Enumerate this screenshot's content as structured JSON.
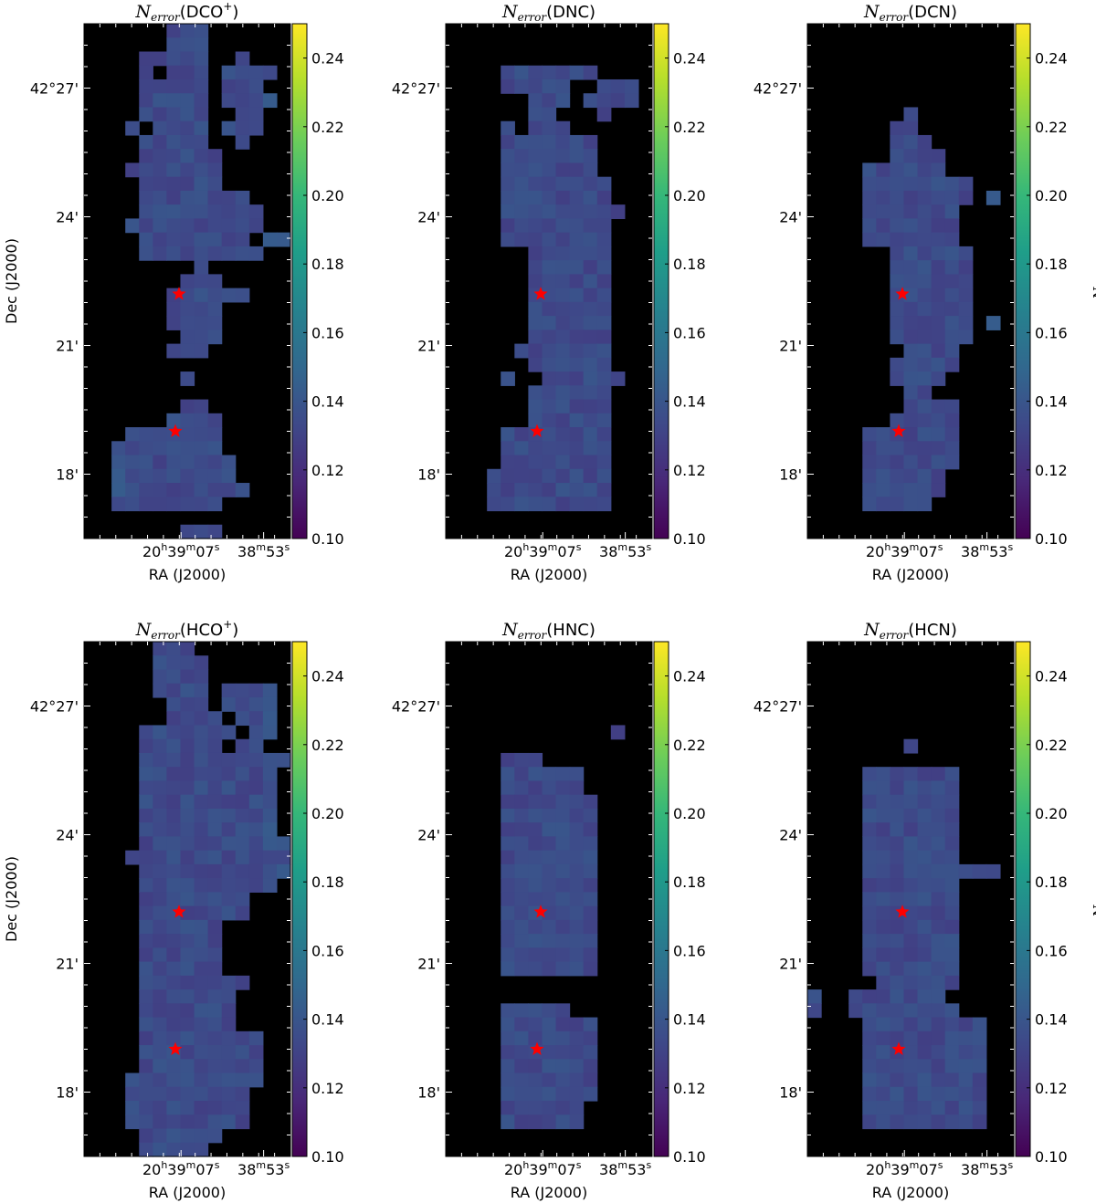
{
  "figure": {
    "colormap": "viridis",
    "background_color": "#000000",
    "marker_color": "#ff0000",
    "marker_symbol": "star",
    "sources": [
      {
        "ra_offset_arcmin": 0.0,
        "dec_arcmin": 22.7
      },
      {
        "ra_offset_arcmin": -0.1,
        "dec_arcmin": 19.5
      }
    ]
  },
  "chart_data": [
    {
      "type": "heatmap",
      "title": {
        "prefix": "N",
        "subscript": "error",
        "species": "(DCO",
        "superscript": "+",
        "close": ")"
      },
      "xlabel": "RA (J2000)",
      "ylabel": "Dec (J2000)",
      "colorbar_label": "",
      "x_ticks": [
        {
          "h": "20",
          "m": "39",
          "s": "07"
        },
        {
          "h": "",
          "m": "38",
          "s": "53"
        }
      ],
      "y_ticks": [
        "42°27'",
        "24'",
        "21'",
        "18'"
      ],
      "y_tick_values_arcmin": [
        27,
        24,
        21,
        18
      ],
      "colorbar": {
        "ticks": [
          "0.24",
          "0.22",
          "0.20",
          "0.18",
          "0.16",
          "0.14",
          "0.12",
          "0.10"
        ],
        "range": [
          0.1,
          0.25
        ]
      },
      "dec_range_arcmin": [
        17.0,
        29.0
      ],
      "value_range_observed": [
        0.12,
        0.15
      ],
      "cells": "sparse emission region, values ~0.13-0.14"
    },
    {
      "type": "heatmap",
      "title": {
        "prefix": "N",
        "subscript": "error",
        "species": "(DNC)",
        "superscript": "",
        "close": ""
      },
      "xlabel": "RA (J2000)",
      "ylabel": "",
      "colorbar_label": "",
      "x_ticks": [
        {
          "h": "20",
          "m": "39",
          "s": "07"
        },
        {
          "h": "",
          "m": "38",
          "s": "53"
        }
      ],
      "y_ticks": [
        "42°27'",
        "24'",
        "21'",
        "18'"
      ],
      "y_tick_values_arcmin": [
        27,
        24,
        21,
        18
      ],
      "colorbar": {
        "ticks": [
          "0.24",
          "0.22",
          "0.20",
          "0.18",
          "0.16",
          "0.14",
          "0.12",
          "0.10"
        ],
        "range": [
          0.1,
          0.25
        ]
      },
      "dec_range_arcmin": [
        17.0,
        29.0
      ],
      "value_range_observed": [
        0.12,
        0.15
      ]
    },
    {
      "type": "heatmap",
      "title": {
        "prefix": "N",
        "subscript": "error",
        "species": "(DCN)",
        "superscript": "",
        "close": ""
      },
      "xlabel": "RA (J2000)",
      "ylabel": "",
      "colorbar_label": {
        "prefix": "N",
        "subscript": "error"
      },
      "x_ticks": [
        {
          "h": "20",
          "m": "39",
          "s": "07"
        },
        {
          "h": "",
          "m": "38",
          "s": "53"
        }
      ],
      "y_ticks": [
        "42°27'",
        "24'",
        "21'",
        "18'"
      ],
      "y_tick_values_arcmin": [
        27,
        24,
        21,
        18
      ],
      "colorbar": {
        "ticks": [
          "0.24",
          "0.22",
          "0.20",
          "0.18",
          "0.16",
          "0.14",
          "0.12",
          "0.10"
        ],
        "range": [
          0.1,
          0.25
        ]
      },
      "dec_range_arcmin": [
        17.0,
        29.0
      ],
      "value_range_observed": [
        0.12,
        0.15
      ]
    },
    {
      "type": "heatmap",
      "title": {
        "prefix": "N",
        "subscript": "error",
        "species": "(HCO",
        "superscript": "+",
        "close": ")"
      },
      "xlabel": "RA (J2000)",
      "ylabel": "Dec (J2000)",
      "colorbar_label": "",
      "x_ticks": [
        {
          "h": "20",
          "m": "39",
          "s": "07"
        },
        {
          "h": "",
          "m": "38",
          "s": "53"
        }
      ],
      "y_ticks": [
        "42°27'",
        "24'",
        "21'",
        "18'"
      ],
      "y_tick_values_arcmin": [
        27,
        24,
        21,
        18
      ],
      "colorbar": {
        "ticks": [
          "0.24",
          "0.22",
          "0.20",
          "0.18",
          "0.16",
          "0.14",
          "0.12",
          "0.10"
        ],
        "range": [
          0.1,
          0.25
        ]
      },
      "dec_range_arcmin": [
        17.0,
        29.0
      ],
      "value_range_observed": [
        0.12,
        0.14
      ]
    },
    {
      "type": "heatmap",
      "title": {
        "prefix": "N",
        "subscript": "error",
        "species": "(HNC)",
        "superscript": "",
        "close": ""
      },
      "xlabel": "RA (J2000)",
      "ylabel": "",
      "colorbar_label": "",
      "x_ticks": [
        {
          "h": "20",
          "m": "39",
          "s": "07"
        },
        {
          "h": "",
          "m": "38",
          "s": "53"
        }
      ],
      "y_ticks": [
        "42°27'",
        "24'",
        "21'",
        "18'"
      ],
      "y_tick_values_arcmin": [
        27,
        24,
        21,
        18
      ],
      "colorbar": {
        "ticks": [
          "0.24",
          "0.22",
          "0.20",
          "0.18",
          "0.16",
          "0.14",
          "0.12",
          "0.10"
        ],
        "range": [
          0.1,
          0.25
        ]
      },
      "dec_range_arcmin": [
        17.0,
        29.0
      ],
      "value_range_observed": [
        0.12,
        0.14
      ]
    },
    {
      "type": "heatmap",
      "title": {
        "prefix": "N",
        "subscript": "error",
        "species": "(HCN)",
        "superscript": "",
        "close": ""
      },
      "xlabel": "RA (J2000)",
      "ylabel": "",
      "colorbar_label": {
        "prefix": "N",
        "subscript": "error"
      },
      "x_ticks": [
        {
          "h": "20",
          "m": "39",
          "s": "07"
        },
        {
          "h": "",
          "m": "38",
          "s": "53"
        }
      ],
      "y_ticks": [
        "42°27'",
        "24'",
        "21'",
        "18'"
      ],
      "y_tick_values_arcmin": [
        27,
        24,
        21,
        18
      ],
      "colorbar": {
        "ticks": [
          "0.24",
          "0.22",
          "0.20",
          "0.18",
          "0.16",
          "0.14",
          "0.12",
          "0.10"
        ],
        "range": [
          0.1,
          0.25
        ]
      },
      "dec_range_arcmin": [
        17.0,
        29.0
      ],
      "value_range_observed": [
        0.12,
        0.14
      ]
    }
  ]
}
